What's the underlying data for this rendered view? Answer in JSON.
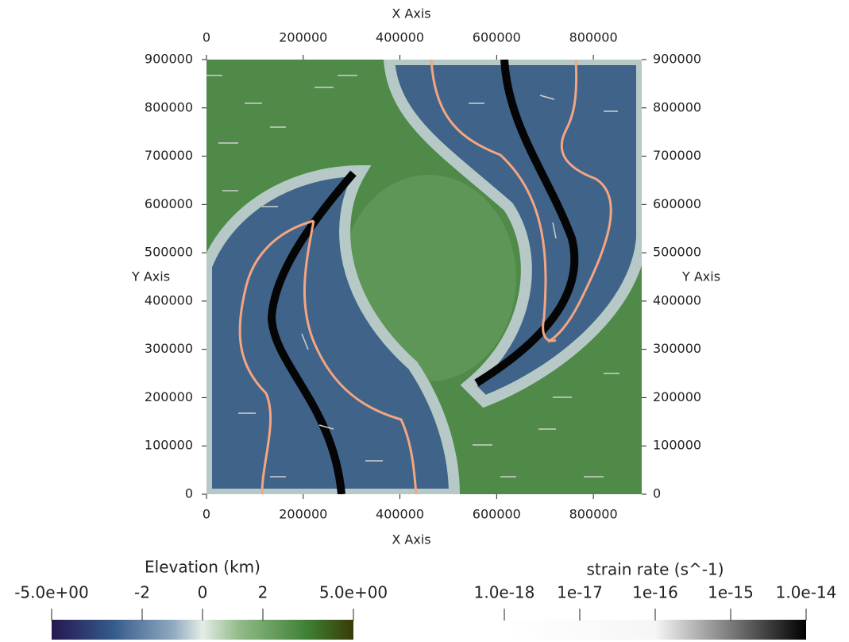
{
  "plot": {
    "x_axis": {
      "title": "X Axis",
      "range": [
        0,
        900000
      ],
      "ticks": [
        0,
        200000,
        400000,
        600000,
        800000
      ]
    },
    "y_axis": {
      "title": "Y Axis",
      "range": [
        0,
        900000
      ],
      "ticks": [
        0,
        100000,
        200000,
        300000,
        400000,
        500000,
        600000,
        700000,
        800000,
        900000
      ]
    }
  },
  "colorbars": [
    {
      "title": "Elevation (km)",
      "range": [
        -5,
        5
      ],
      "ticks": [
        {
          "value": -5,
          "label": "-5.0e+00"
        },
        -2,
        0,
        2,
        {
          "value": 5,
          "label": "5.0e+00"
        }
      ]
    },
    {
      "title": "strain rate (s^-1)",
      "log": true,
      "range": [
        1e-18,
        1e-14
      ],
      "ticks": [
        {
          "value": 1e-18,
          "label": "1.0e-18"
        },
        {
          "value": 1e-17,
          "label": "1e-17"
        },
        {
          "value": 1e-16,
          "label": "1e-16"
        },
        {
          "value": 1e-15,
          "label": "1e-15"
        },
        {
          "value": 1e-14,
          "label": "1.0e-14"
        }
      ]
    }
  ]
}
